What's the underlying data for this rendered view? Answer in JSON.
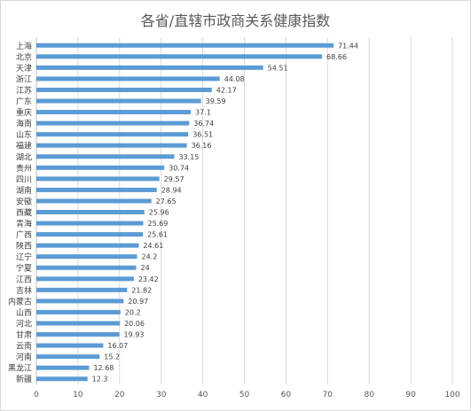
{
  "chart_data": {
    "type": "bar",
    "orientation": "horizontal",
    "title": "各省/直辖市政商关系健康指数",
    "xlim": [
      0,
      100
    ],
    "xticks": [
      "0",
      "10",
      "20",
      "30",
      "40",
      "50",
      "60",
      "70",
      "80",
      "90",
      "100"
    ],
    "grid": true,
    "bar_color": "#5b9bd5",
    "categories": [
      "上海",
      "北京",
      "天津",
      "浙江",
      "江苏",
      "广东",
      "重庆",
      "海南",
      "山东",
      "福建",
      "湖北",
      "贵州",
      "四川",
      "湖南",
      "安徽",
      "西藏",
      "青海",
      "广西",
      "陕西",
      "辽宁",
      "宁夏",
      "江西",
      "吉林",
      "内蒙古",
      "山西",
      "河北",
      "甘肃",
      "云南",
      "河南",
      "黑龙江",
      "新疆"
    ],
    "values": [
      71.44,
      68.66,
      54.51,
      44.08,
      42.17,
      39.59,
      37.1,
      36.74,
      36.51,
      36.16,
      33.15,
      30.74,
      29.57,
      28.94,
      27.65,
      25.96,
      25.69,
      25.61,
      24.61,
      24.2,
      24,
      23.42,
      21.82,
      20.97,
      20.2,
      20.06,
      19.93,
      16.07,
      15.2,
      12.68,
      12.3
    ],
    "value_labels": [
      "71.44",
      "68.66",
      "54.51",
      "44.08",
      "42.17",
      "39.59",
      "37.1",
      "36.74",
      "36.51",
      "36.16",
      "33.15",
      "30.74",
      "29.57",
      "28.94",
      "27.65",
      "25.96",
      "25.69",
      "25.61",
      "24.61",
      "24.2",
      "24",
      "23.42",
      "21.82",
      "20.97",
      "20.2",
      "20.06",
      "19.93",
      "16.07",
      "15.2",
      "12.68",
      "12.3"
    ]
  }
}
